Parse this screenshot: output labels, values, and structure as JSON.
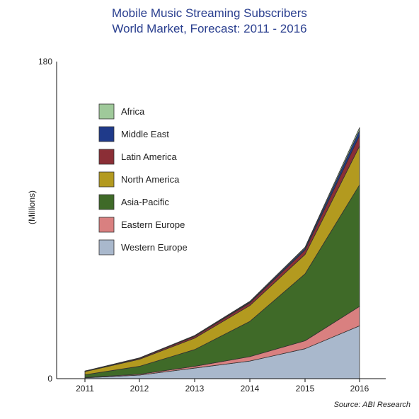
{
  "chart_data": {
    "type": "area",
    "stacked": true,
    "title": "Mobile Music Streaming Subscribers",
    "subtitle": "World Market, Forecast: 2011 - 2016",
    "ylabel": "(Millions)",
    "xlabel": "",
    "x": [
      "2011",
      "2012",
      "2013",
      "2014",
      "2015",
      "2016"
    ],
    "ylim": [
      0,
      180
    ],
    "yticks": [
      "0",
      "180"
    ],
    "grid": false,
    "legend_position": "upper-left",
    "series": [
      {
        "name": "Western Europe",
        "color": "#a9b8cc",
        "values": [
          0.5,
          2,
          6,
          10,
          17,
          30
        ]
      },
      {
        "name": "Eastern Europe",
        "color": "#d98080",
        "values": [
          0.2,
          0.5,
          1,
          2.5,
          4.5,
          11
        ]
      },
      {
        "name": "Asia-Pacific",
        "color": "#3f6a28",
        "values": [
          1.5,
          4.5,
          9.5,
          20,
          38,
          69
        ]
      },
      {
        "name": "North America",
        "color": "#b39a1f",
        "values": [
          1.8,
          4,
          6.5,
          9,
          11,
          22
        ]
      },
      {
        "name": "Latin America",
        "color": "#8b2e36",
        "values": [
          0.2,
          0.5,
          1,
          1.5,
          2.5,
          6
        ]
      },
      {
        "name": "Middle East",
        "color": "#1f3a8a",
        "values": [
          0.1,
          0.2,
          0.3,
          0.5,
          1,
          3
        ]
      },
      {
        "name": "Africa",
        "color": "#9fc99a",
        "values": [
          0.05,
          0.1,
          0.2,
          0.4,
          0.6,
          1.5
        ]
      }
    ],
    "legend_order": [
      "Africa",
      "Middle East",
      "Latin America",
      "North America",
      "Asia-Pacific",
      "Eastern Europe",
      "Western Europe"
    ]
  },
  "source": "Source: ABI Research"
}
